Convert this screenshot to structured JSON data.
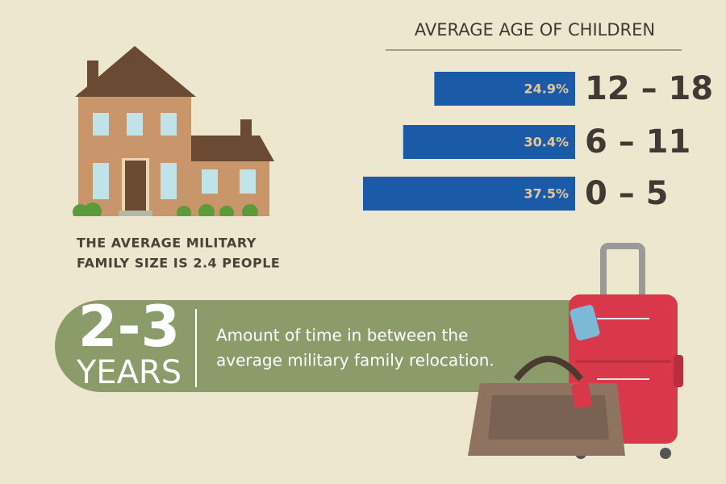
{
  "chart_data": {
    "type": "bar",
    "title": "AVERAGE AGE OF CHILDREN",
    "categories": [
      "12 – 18",
      "6 – 11",
      "0 – 5"
    ],
    "values": [
      24.9,
      30.4,
      37.5
    ],
    "value_labels": [
      "24.9%",
      "30.4%",
      "37.5%"
    ],
    "color": "#1a5aa6",
    "orientation": "horizontal"
  },
  "caption": [
    "THE AVERAGE MILITARY",
    "FAMILY SIZE IS 2.4 PEOPLE"
  ],
  "banner": {
    "number": "2-3",
    "unit": "YEARS",
    "text": [
      "Amount of time in between the",
      "average military family relocation."
    ]
  }
}
